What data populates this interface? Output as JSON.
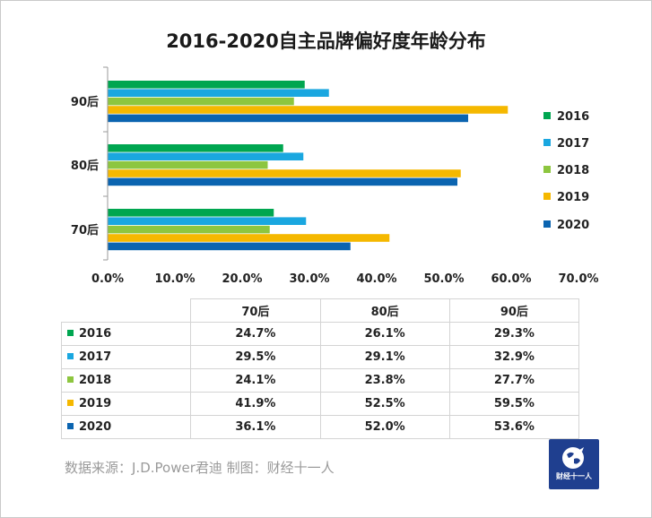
{
  "chart_data": {
    "type": "bar",
    "orientation": "horizontal",
    "title": "2016-2020自主品牌偏好度年龄分布",
    "categories": [
      "70后",
      "80后",
      "90后"
    ],
    "series": [
      {
        "name": "2016",
        "color": "#00a650",
        "values": [
          24.7,
          26.1,
          29.3
        ],
        "labels": [
          "24.7%",
          "26.1%",
          "29.3%"
        ]
      },
      {
        "name": "2017",
        "color": "#1aa7e0",
        "values": [
          29.5,
          29.1,
          32.9
        ],
        "labels": [
          "29.5%",
          "29.1%",
          "32.9%"
        ]
      },
      {
        "name": "2018",
        "color": "#8dc63f",
        "values": [
          24.1,
          23.8,
          27.7
        ],
        "labels": [
          "24.1%",
          "23.8%",
          "27.7%"
        ]
      },
      {
        "name": "2019",
        "color": "#f5b800",
        "values": [
          41.9,
          52.5,
          59.5
        ],
        "labels": [
          "41.9%",
          "52.5%",
          "59.5%"
        ]
      },
      {
        "name": "2020",
        "color": "#0b64b0",
        "values": [
          36.1,
          52.0,
          53.6
        ],
        "labels": [
          "36.1%",
          "52.0%",
          "53.6%"
        ]
      }
    ],
    "xlim": [
      0,
      70
    ],
    "x_ticks": [
      "0.0%",
      "10.0%",
      "20.0%",
      "30.0%",
      "40.0%",
      "50.0%",
      "60.0%",
      "70.0%"
    ],
    "grid": false,
    "legend": "right"
  },
  "table": {
    "headers": [
      "70后",
      "80后",
      "90后"
    ]
  },
  "source_text": "数据来源：J.D.Power君迪    制图：财经十一人",
  "logo": {
    "text": "财经十一人",
    "icon": "globe-icon"
  }
}
